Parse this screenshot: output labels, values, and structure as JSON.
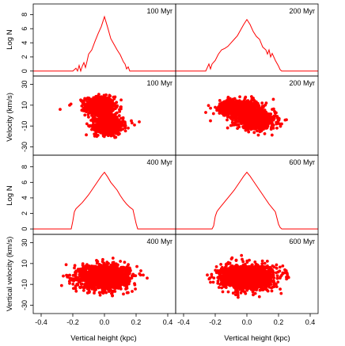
{
  "figure": {
    "x_label": "Vertical height (kpc)",
    "histogram_y_label": "Log N",
    "top_velocity_label": "Velocity (km/s)",
    "bottom_velocity_label": "Vertical velocity (km/s)",
    "series_color": "#ff0000"
  },
  "chart_data": [
    {
      "type": "line",
      "panel": "histogram",
      "label": "100 Myr",
      "xlim": [
        -0.45,
        0.45
      ],
      "ylim": [
        -0.7,
        9.5
      ],
      "x_ticks": [
        -0.4,
        -0.2,
        0.0,
        0.2,
        0.4
      ],
      "y_ticks": [
        0,
        2,
        4,
        6,
        8
      ],
      "x": [
        -0.45,
        -0.2,
        -0.18,
        -0.17,
        -0.16,
        -0.15,
        -0.14,
        -0.13,
        -0.12,
        -0.11,
        -0.1,
        -0.08,
        -0.06,
        -0.04,
        -0.02,
        0.0,
        0.02,
        0.04,
        0.06,
        0.08,
        0.1,
        0.12,
        0.13,
        0.14,
        0.15,
        0.16,
        0.18,
        0.2,
        0.45
      ],
      "y": [
        0,
        0,
        0.4,
        0,
        0.8,
        0,
        0.7,
        1.2,
        0.5,
        1.4,
        2.4,
        3.0,
        4.2,
        5.3,
        6.3,
        7.7,
        6.2,
        4.6,
        3.8,
        3.0,
        2.3,
        1.3,
        1.0,
        0.3,
        0.6,
        0,
        0,
        0,
        0
      ]
    },
    {
      "type": "line",
      "panel": "histogram",
      "label": "200 Myr",
      "xlim": [
        -0.45,
        0.45
      ],
      "ylim": [
        -0.7,
        9.5
      ],
      "x_ticks": [
        -0.4,
        -0.2,
        0.0,
        0.2,
        0.4
      ],
      "y_ticks": [
        0,
        2,
        4,
        6,
        8
      ],
      "x": [
        -0.45,
        -0.26,
        -0.25,
        -0.24,
        -0.23,
        -0.22,
        -0.2,
        -0.18,
        -0.16,
        -0.14,
        -0.12,
        -0.1,
        -0.08,
        -0.06,
        -0.04,
        -0.02,
        0.0,
        0.02,
        0.04,
        0.06,
        0.08,
        0.1,
        0.12,
        0.13,
        0.14,
        0.15,
        0.16,
        0.18,
        0.2,
        0.21,
        0.22,
        0.45
      ],
      "y": [
        0,
        0,
        0.5,
        1.0,
        0.3,
        1.0,
        1.5,
        2.4,
        3.0,
        3.2,
        3.5,
        4.0,
        4.5,
        5.0,
        5.8,
        6.6,
        7.3,
        6.6,
        5.6,
        4.9,
        4.5,
        3.4,
        3.0,
        2.4,
        3.0,
        2.0,
        2.5,
        1.5,
        0.7,
        0.2,
        0,
        0
      ]
    },
    {
      "type": "scatter",
      "panel": "velocity",
      "label": "100 Myr",
      "xlim": [
        -0.45,
        0.45
      ],
      "ylim": [
        -38,
        38
      ],
      "x_ticks": [
        -0.4,
        -0.2,
        0.0,
        0.2,
        0.4
      ],
      "y_ticks": [
        -30,
        -10,
        10,
        30
      ],
      "clusters": [
        {
          "cx": -0.03,
          "cy": 9,
          "sx": 0.045,
          "sy": 4.5,
          "n": 700
        },
        {
          "cx": 0.03,
          "cy": -9,
          "sx": 0.045,
          "sy": 4.5,
          "n": 700
        },
        {
          "cx": 0.0,
          "cy": 0,
          "sx": 0.02,
          "sy": 3,
          "n": 150
        }
      ],
      "outliers": [
        {
          "x": -0.28,
          "y": 6
        },
        {
          "x": -0.22,
          "y": 10
        },
        {
          "x": -0.15,
          "y": 15
        },
        {
          "x": -0.13,
          "y": 12
        },
        {
          "x": 0.17,
          "y": -5
        },
        {
          "x": 0.22,
          "y": -6
        },
        {
          "x": 0.15,
          "y": -12
        },
        {
          "x": 0.19,
          "y": -9
        }
      ]
    },
    {
      "type": "scatter",
      "panel": "velocity",
      "label": "200 Myr",
      "xlim": [
        -0.45,
        0.45
      ],
      "ylim": [
        -38,
        38
      ],
      "x_ticks": [
        -0.4,
        -0.2,
        0.0,
        0.2,
        0.4
      ],
      "y_ticks": [
        -30,
        -10,
        10,
        30
      ],
      "clusters": [
        {
          "cx": -0.05,
          "cy": 8,
          "sx": 0.06,
          "sy": 3.5,
          "n": 800
        },
        {
          "cx": 0.06,
          "cy": -5,
          "sx": 0.06,
          "sy": 4,
          "n": 800
        },
        {
          "cx": 0.0,
          "cy": 0,
          "sx": 0.03,
          "sy": 3,
          "n": 200
        }
      ],
      "outliers": [
        {
          "x": -0.23,
          "y": -5
        },
        {
          "x": -0.26,
          "y": 3
        },
        {
          "x": -0.2,
          "y": 8
        },
        {
          "x": 0.22,
          "y": -8
        },
        {
          "x": 0.19,
          "y": -12
        },
        {
          "x": 0.16,
          "y": 6
        },
        {
          "x": 0.25,
          "y": -4
        }
      ]
    },
    {
      "type": "line",
      "panel": "histogram",
      "label": "400 Myr",
      "xlim": [
        -0.45,
        0.45
      ],
      "ylim": [
        -0.7,
        9.5
      ],
      "x_ticks": [
        -0.4,
        -0.2,
        0.0,
        0.2,
        0.4
      ],
      "y_ticks": [
        0,
        2,
        4,
        6,
        8
      ],
      "x": [
        -0.45,
        -0.21,
        -0.2,
        -0.19,
        -0.18,
        -0.16,
        -0.14,
        -0.12,
        -0.1,
        -0.08,
        -0.06,
        -0.04,
        -0.02,
        0.0,
        0.02,
        0.04,
        0.06,
        0.08,
        0.1,
        0.12,
        0.14,
        0.16,
        0.18,
        0.19,
        0.2,
        0.21,
        0.45
      ],
      "y": [
        0,
        0,
        1.0,
        2.2,
        2.6,
        3.0,
        3.4,
        3.9,
        4.4,
        5.0,
        5.6,
        6.2,
        6.8,
        7.3,
        6.7,
        6.0,
        5.5,
        5.0,
        4.3,
        3.7,
        3.2,
        2.8,
        2.5,
        1.6,
        0.7,
        0,
        0
      ]
    },
    {
      "type": "line",
      "panel": "histogram",
      "label": "600 Myr",
      "xlim": [
        -0.45,
        0.45
      ],
      "ylim": [
        -0.7,
        9.5
      ],
      "x_ticks": [
        -0.4,
        -0.2,
        0.0,
        0.2,
        0.4
      ],
      "y_ticks": [
        0,
        2,
        4,
        6,
        8
      ],
      "x": [
        -0.45,
        -0.22,
        -0.21,
        -0.2,
        -0.19,
        -0.18,
        -0.16,
        -0.14,
        -0.12,
        -0.1,
        -0.08,
        -0.06,
        -0.04,
        -0.02,
        0.0,
        0.02,
        0.04,
        0.06,
        0.08,
        0.1,
        0.12,
        0.14,
        0.16,
        0.18,
        0.19,
        0.2,
        0.21,
        0.22,
        0.45
      ],
      "y": [
        0,
        0,
        0.4,
        1.6,
        2.2,
        2.5,
        3.0,
        3.5,
        4.0,
        4.5,
        5.0,
        5.6,
        6.2,
        6.8,
        7.3,
        6.8,
        6.2,
        5.6,
        5.0,
        4.4,
        3.8,
        3.2,
        2.7,
        2.2,
        1.4,
        0.6,
        0.2,
        0,
        0
      ]
    },
    {
      "type": "scatter",
      "panel": "vertical-velocity",
      "label": "400 Myr",
      "xlim": [
        -0.45,
        0.45
      ],
      "ylim": [
        -38,
        38
      ],
      "x_ticks": [
        -0.4,
        -0.2,
        0.0,
        0.2,
        0.4
      ],
      "y_ticks": [
        -30,
        -10,
        10,
        30
      ],
      "clusters": [
        {
          "cx": 0.0,
          "cy": -3,
          "sx": 0.075,
          "sy": 5.5,
          "n": 1800
        }
      ],
      "outliers": [
        {
          "x": -0.26,
          "y": -2
        },
        {
          "x": 0.27,
          "y": -4
        },
        {
          "x": 0.23,
          "y": 3
        },
        {
          "x": -0.22,
          "y": -9
        },
        {
          "x": 0.05,
          "y": -21
        },
        {
          "x": -0.05,
          "y": 13
        }
      ]
    },
    {
      "type": "scatter",
      "panel": "vertical-velocity",
      "label": "600 Myr",
      "xlim": [
        -0.45,
        0.45
      ],
      "ylim": [
        -38,
        38
      ],
      "x_ticks": [
        -0.4,
        -0.2,
        0.0,
        0.2,
        0.4
      ],
      "y_ticks": [
        -30,
        -10,
        10,
        30
      ],
      "clusters": [
        {
          "cx": 0.0,
          "cy": -3,
          "sx": 0.08,
          "sy": 5.5,
          "n": 1800
        }
      ],
      "outliers": [
        {
          "x": -0.25,
          "y": -1
        },
        {
          "x": 0.25,
          "y": -3
        },
        {
          "x": 0.24,
          "y": 4
        },
        {
          "x": -0.23,
          "y": -8
        },
        {
          "x": -0.03,
          "y": 14
        },
        {
          "x": 0.04,
          "y": -20
        }
      ]
    }
  ]
}
